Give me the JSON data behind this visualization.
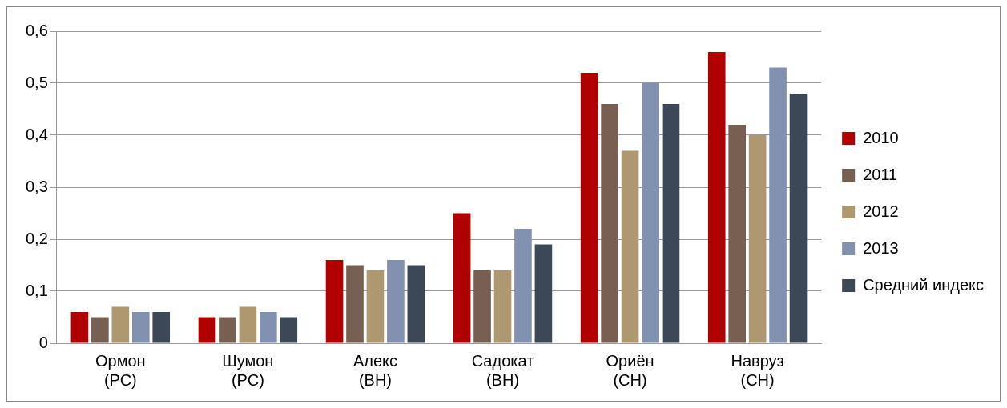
{
  "chart_data": {
    "type": "bar",
    "categories": [
      "Ормон (РС)",
      "Шумон (РС)",
      "Алекс (ВН)",
      "Садокат (ВН)",
      "Ориён (СН)",
      "Навруз (СН)"
    ],
    "series": [
      {
        "name": "2010",
        "color": "#b00000",
        "values": [
          0.06,
          0.05,
          0.16,
          0.25,
          0.52,
          0.56
        ]
      },
      {
        "name": "2011",
        "color": "#775f52",
        "values": [
          0.05,
          0.05,
          0.15,
          0.14,
          0.46,
          0.42
        ]
      },
      {
        "name": "2012",
        "color": "#ae9870",
        "values": [
          0.07,
          0.07,
          0.14,
          0.14,
          0.37,
          0.4
        ]
      },
      {
        "name": "2013",
        "color": "#8391b0",
        "values": [
          0.06,
          0.06,
          0.16,
          0.22,
          0.5,
          0.53
        ]
      },
      {
        "name": "Средний индекс",
        "color": "#3c4858",
        "values": [
          0.06,
          0.05,
          0.15,
          0.19,
          0.46,
          0.48
        ]
      }
    ],
    "ylim": [
      0,
      0.6
    ],
    "yticks": [
      0,
      {
        "value": 0.1,
        "label": "0,1"
      },
      {
        "value": 0.2,
        "label": "0,2"
      },
      {
        "value": 0.3,
        "label": "0,3"
      },
      {
        "value": 0.4,
        "label": "0,4"
      },
      {
        "value": 0.5,
        "label": "0,5"
      },
      {
        "value": 0.6,
        "label": "0,6"
      }
    ],
    "grid": "y",
    "legend": "right"
  }
}
